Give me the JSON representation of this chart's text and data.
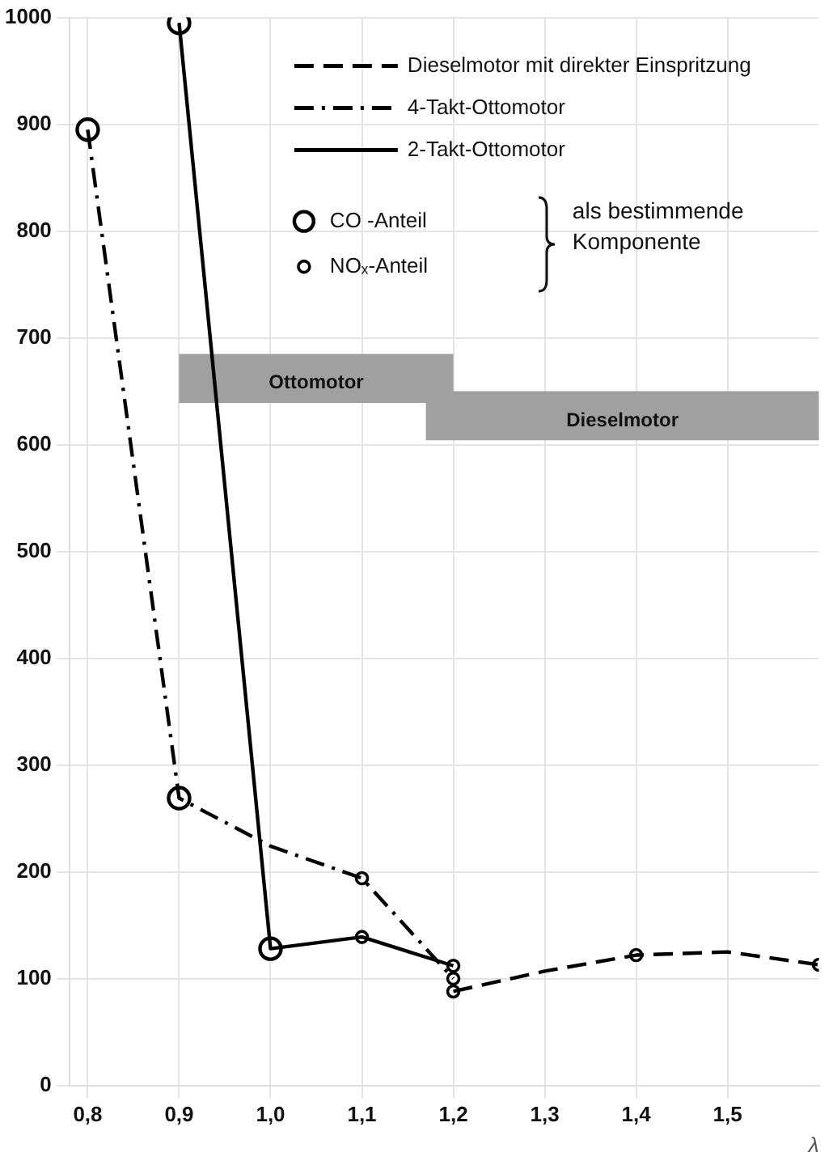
{
  "chart_data": {
    "type": "line",
    "xlabel": "λ",
    "series": [
      {
        "name": "Dieselmotor mit direkter Einspritzung",
        "color": "#000000",
        "line_style": "dashed",
        "marker": "none",
        "x": [
          1.2,
          1.3,
          1.4,
          1.5,
          1.6
        ],
        "values": [
          88,
          107,
          122,
          125,
          113
        ]
      },
      {
        "name": "4-Takt-Ottomotor",
        "color": "#000000",
        "line_style": "dash-dot",
        "marker": "none",
        "x": [
          0.8,
          0.9,
          1.0,
          1.1,
          1.2
        ],
        "values": [
          895,
          269,
          224,
          194,
          100
        ]
      },
      {
        "name": "2-Takt-Ottomotor",
        "color": "#000000",
        "line_style": "solid",
        "marker": "none",
        "x": [
          0.9,
          1.0,
          1.1,
          1.2
        ],
        "values": [
          995,
          128,
          139,
          112
        ]
      },
      {
        "name": "CO -Anteil",
        "type": "scatter",
        "color": "#000000",
        "marker": "circle",
        "x": [
          0.8,
          0.9,
          0.9,
          1.0
        ],
        "values": [
          895,
          269,
          995,
          128
        ]
      },
      {
        "name": "NOₓ-Anteil",
        "type": "scatter",
        "color": "#000000",
        "marker": "circle",
        "x": [
          1.1,
          1.2,
          1.1,
          1.2,
          1.2,
          1.4,
          1.6
        ],
        "values": [
          194,
          100,
          139,
          112,
          88,
          122,
          113
        ]
      }
    ],
    "xlim": [
      0.78,
      1.6
    ],
    "xticks": [
      {
        "value": 0.8,
        "label": "0,8"
      },
      {
        "value": 0.9,
        "label": "0,9"
      },
      {
        "value": 1.0,
        "label": "1,0"
      },
      {
        "value": 1.1,
        "label": "1,1"
      },
      {
        "value": 1.2,
        "label": "1,2"
      },
      {
        "value": 1.3,
        "label": "1,3"
      },
      {
        "value": 1.4,
        "label": "1,4"
      },
      {
        "value": 1.5,
        "label": "1,5"
      }
    ],
    "ylim": [
      0,
      1000
    ],
    "yticks": [
      0,
      100,
      200,
      300,
      400,
      500,
      600,
      700,
      800,
      900,
      1000
    ],
    "grid": true,
    "legend": "top right",
    "bands": [
      {
        "axis": "x",
        "from": 0.9,
        "to": 1.2,
        "label": "Ottomotor",
        "color": "#a0a0a0"
      },
      {
        "axis": "x",
        "from": 1.17,
        "to": 1.6,
        "label": "Dieselmotor",
        "color": "#a0a0a0"
      }
    ],
    "annotations": [
      "als bestimmende Komponente"
    ]
  }
}
